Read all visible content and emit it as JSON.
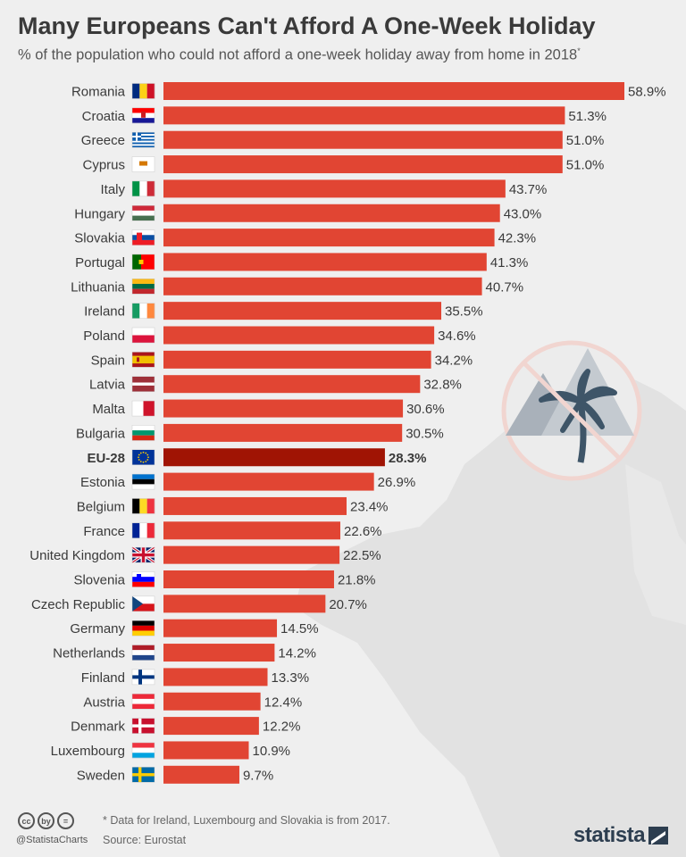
{
  "header": {
    "title": "Many Europeans Can't Afford A One-Week Holiday",
    "subtitle": "% of the population who could not afford a one-week holiday away from home in 2018",
    "subtitle_mark": "*"
  },
  "footer": {
    "note": "* Data for Ireland, Luxembourg and Slovakia is from 2017.",
    "source": "Source: Eurostat",
    "handle": "@StatistaCharts",
    "brand": "statista",
    "cc_icons": [
      "cc",
      "by",
      "="
    ]
  },
  "colors": {
    "bar": "#e14533",
    "highlight_bar": "#a01404",
    "text": "#3a3a3a",
    "background": "#efefef"
  },
  "decoration_icon": "no-palm-tree-icon",
  "chart_data": {
    "type": "bar",
    "orientation": "horizontal",
    "unit": "%",
    "xlim": [
      0,
      60
    ],
    "highlight": "EU-28",
    "categories": [
      "Romania",
      "Croatia",
      "Greece",
      "Cyprus",
      "Italy",
      "Hungary",
      "Slovakia",
      "Portugal",
      "Lithuania",
      "Ireland",
      "Poland",
      "Spain",
      "Latvia",
      "Malta",
      "Bulgaria",
      "EU-28",
      "Estonia",
      "Belgium",
      "France",
      "United Kingdom",
      "Slovenia",
      "Czech Republic",
      "Germany",
      "Netherlands",
      "Finland",
      "Austria",
      "Denmark",
      "Luxembourg",
      "Sweden"
    ],
    "values": [
      58.9,
      51.3,
      51.0,
      51.0,
      43.7,
      43.0,
      42.3,
      41.3,
      40.7,
      35.5,
      34.6,
      34.2,
      32.8,
      30.6,
      30.5,
      28.3,
      26.9,
      23.4,
      22.6,
      22.5,
      21.8,
      20.7,
      14.5,
      14.2,
      13.3,
      12.4,
      12.2,
      10.9,
      9.7
    ],
    "value_labels": [
      "58.9%",
      "51.3%",
      "51.0%",
      "51.0%",
      "43.7%",
      "43.0%",
      "42.3%",
      "41.3%",
      "40.7%",
      "35.5%",
      "34.6%",
      "34.2%",
      "32.8%",
      "30.6%",
      "30.5%",
      "28.3%",
      "26.9%",
      "23.4%",
      "22.6%",
      "22.5%",
      "21.8%",
      "20.7%",
      "14.5%",
      "14.2%",
      "13.3%",
      "12.4%",
      "12.2%",
      "10.9%",
      "9.7%"
    ],
    "flags": [
      "romania-flag-icon",
      "croatia-flag-icon",
      "greece-flag-icon",
      "cyprus-flag-icon",
      "italy-flag-icon",
      "hungary-flag-icon",
      "slovakia-flag-icon",
      "portugal-flag-icon",
      "lithuania-flag-icon",
      "ireland-flag-icon",
      "poland-flag-icon",
      "spain-flag-icon",
      "latvia-flag-icon",
      "malta-flag-icon",
      "bulgaria-flag-icon",
      "eu-flag-icon",
      "estonia-flag-icon",
      "belgium-flag-icon",
      "france-flag-icon",
      "uk-flag-icon",
      "slovenia-flag-icon",
      "czech-flag-icon",
      "germany-flag-icon",
      "netherlands-flag-icon",
      "finland-flag-icon",
      "austria-flag-icon",
      "denmark-flag-icon",
      "luxembourg-flag-icon",
      "sweden-flag-icon"
    ]
  }
}
